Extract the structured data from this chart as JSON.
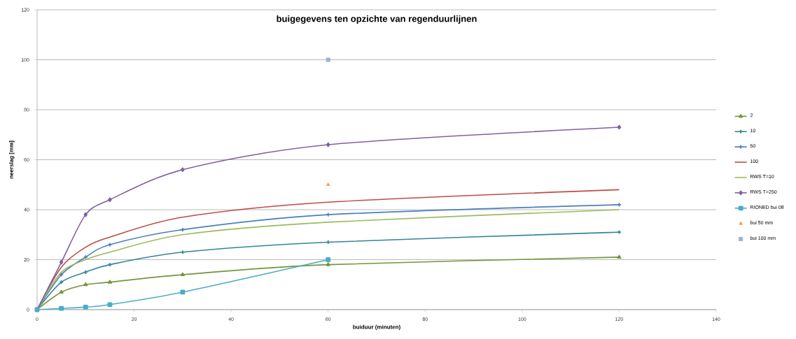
{
  "chart_data": {
    "type": "line",
    "title": "buigegevens ten opzichte van regenduurlijnen",
    "xlabel": "buiduur (minuten)",
    "ylabel": "neerslag [mm]",
    "xlim": [
      0,
      140
    ],
    "xticks": [
      0,
      20,
      40,
      60,
      80,
      100,
      120,
      140
    ],
    "ylim": [
      0,
      120
    ],
    "yticks": [
      0,
      20,
      40,
      60,
      80,
      100,
      120
    ],
    "grid": "y",
    "legend": "right",
    "series": [
      {
        "name": "2",
        "color": "#77933c",
        "marker": "triangle",
        "x": [
          0,
          5,
          10,
          15,
          30,
          60,
          120
        ],
        "values": [
          0,
          7,
          10,
          11,
          14,
          18,
          21
        ]
      },
      {
        "name": "10",
        "color": "#31859c",
        "marker": "cross",
        "x": [
          0,
          5,
          10,
          15,
          30,
          60,
          120
        ],
        "values": [
          0,
          11,
          15,
          18,
          23,
          27,
          31
        ]
      },
      {
        "name": "50",
        "color": "#4a7ebb",
        "marker": "cross",
        "x": [
          0,
          5,
          10,
          15,
          30,
          60,
          120
        ],
        "values": [
          0,
          14,
          21,
          26,
          32,
          38,
          42
        ]
      },
      {
        "name": "100",
        "color": "#be4b48",
        "marker": "none",
        "x": [
          0,
          5,
          10,
          15,
          30,
          60,
          120
        ],
        "values": [
          0,
          17,
          25,
          29,
          37,
          43,
          48
        ]
      },
      {
        "name": "RWS T=10",
        "color": "#9bbb59",
        "marker": "none",
        "x": [
          0,
          5,
          10,
          15,
          30,
          60,
          120
        ],
        "values": [
          0,
          15,
          20,
          23,
          30,
          35,
          40
        ]
      },
      {
        "name": "RWS T=250",
        "color": "#7f60a2",
        "marker": "diamond",
        "x": [
          0,
          5,
          10,
          15,
          30,
          60,
          120
        ],
        "values": [
          0,
          19,
          38,
          44,
          56,
          66,
          73
        ]
      },
      {
        "name": "RIONED bui 08",
        "color": "#4bacc6",
        "marker": "square",
        "x": [
          0,
          5,
          10,
          15,
          30,
          60
        ],
        "values": [
          0,
          0.5,
          1,
          2,
          7,
          20
        ]
      },
      {
        "name": "bui 50 mm",
        "type": "scatter",
        "color": "#f79646",
        "marker": "triangle",
        "x": [
          60
        ],
        "values": [
          50
        ]
      },
      {
        "name": "bui 100 mm",
        "type": "scatter",
        "color": "#95b3d7",
        "marker": "square",
        "x": [
          60
        ],
        "values": [
          100
        ]
      }
    ]
  }
}
